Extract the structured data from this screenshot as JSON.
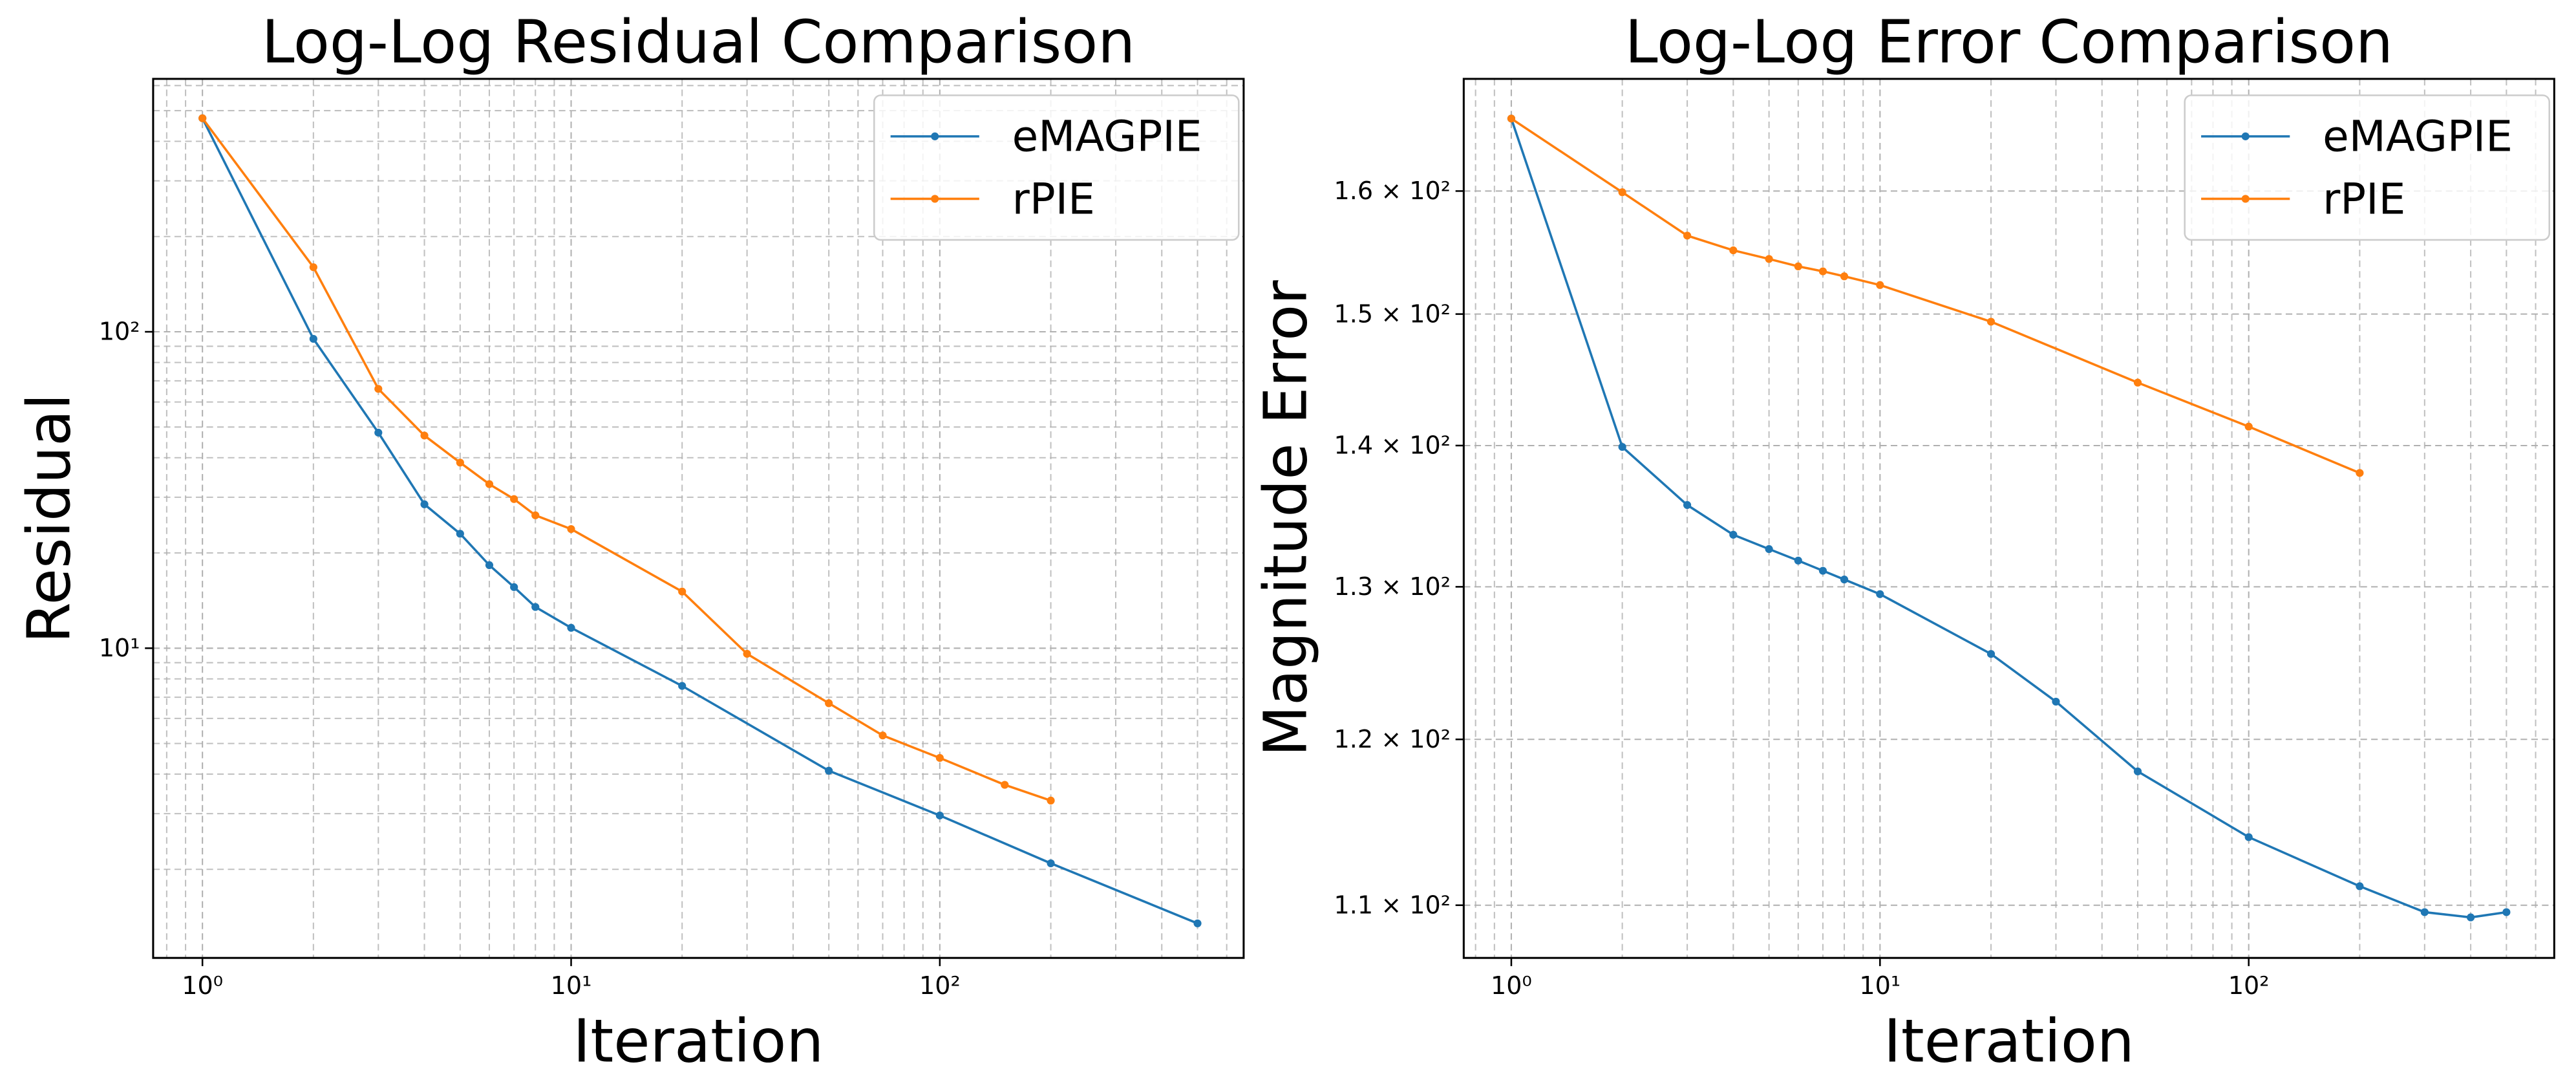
{
  "chart_data": [
    {
      "type": "line",
      "title": "Log-Log Residual Comparison",
      "x_label": "Iteration",
      "y_label": "Residual",
      "xscale": "log",
      "yscale": "log",
      "grid": true,
      "minor_grid": [
        "x",
        "y"
      ],
      "legend": "upper right",
      "xlim": [
        0.735,
        667
      ],
      "ylim": [
        1.05,
        630
      ],
      "xticks": [
        {
          "value": 1,
          "label": "10⁰"
        },
        {
          "value": 10,
          "label": "10¹"
        },
        {
          "value": 100,
          "label": "10²"
        }
      ],
      "yticks": [
        {
          "value": 10,
          "label": "10¹"
        },
        {
          "value": 100,
          "label": "10²"
        }
      ],
      "series": [
        {
          "name": "eMAGPIE",
          "color": "#1f77b4",
          "x": [
            1,
            2,
            3,
            4,
            5,
            6,
            7,
            8,
            10,
            20,
            50,
            100,
            200,
            500
          ],
          "values": [
            473,
            95,
            48,
            28.5,
            23,
            18.3,
            15.6,
            13.5,
            11.6,
            7.6,
            4.1,
            2.96,
            2.09,
            1.35
          ]
        },
        {
          "name": "rPIE",
          "color": "#ff7f0e",
          "x": [
            1,
            2,
            3,
            4,
            5,
            6,
            7,
            8,
            10,
            20,
            30,
            50,
            70,
            100,
            150,
            200
          ],
          "values": [
            473,
            160,
            66,
            47,
            38.6,
            33,
            29.6,
            26.3,
            23.8,
            15.1,
            9.6,
            6.7,
            5.3,
            4.5,
            3.7,
            3.3
          ]
        }
      ]
    },
    {
      "type": "line",
      "title": "Log-Log Error Comparison",
      "x_label": "Iteration",
      "y_label": "Magnitude Error",
      "xscale": "log",
      "yscale": "log",
      "grid": true,
      "minor_grid": [
        "x"
      ],
      "legend": "upper right",
      "xlim": [
        0.743,
        674
      ],
      "ylim": [
        107,
        169.7
      ],
      "xticks": [
        {
          "value": 1,
          "label": "10⁰"
        },
        {
          "value": 10,
          "label": "10¹"
        },
        {
          "value": 100,
          "label": "10²"
        }
      ],
      "yticks": [
        {
          "value": 110,
          "label": "1.1 × 10²"
        },
        {
          "value": 120,
          "label": "1.2 × 10²"
        },
        {
          "value": 130,
          "label": "1.3 × 10²"
        },
        {
          "value": 140,
          "label": "1.4 × 10²"
        },
        {
          "value": 150,
          "label": "1.5 × 10²"
        },
        {
          "value": 160,
          "label": "1.6 × 10²"
        }
      ],
      "series": [
        {
          "name": "eMAGPIE",
          "color": "#1f77b4",
          "x": [
            1,
            2,
            3,
            4,
            5,
            6,
            7,
            8,
            10,
            20,
            30,
            50,
            100,
            200,
            300,
            400,
            500
          ],
          "values": [
            166.2,
            139.9,
            135.7,
            133.6,
            132.6,
            131.8,
            131.1,
            130.5,
            129.5,
            125.5,
            122.4,
            118,
            114,
            111.1,
            109.6,
            109.3,
            109.6
          ]
        },
        {
          "name": "rPIE",
          "color": "#ff7f0e",
          "x": [
            1,
            2,
            3,
            4,
            5,
            6,
            7,
            8,
            10,
            20,
            50,
            100,
            200
          ],
          "values": [
            166.2,
            159.9,
            156.3,
            155.1,
            154.4,
            153.8,
            153.4,
            153,
            152.3,
            149.4,
            144.7,
            141.4,
            138
          ]
        }
      ]
    }
  ]
}
